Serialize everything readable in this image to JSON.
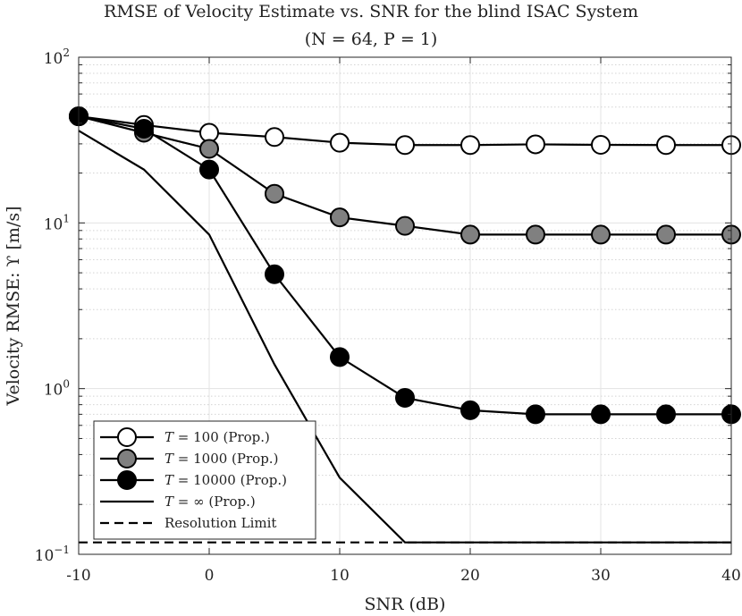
{
  "chart_data": {
    "type": "line",
    "title": "RMSE of Velocity Estimate vs. SNR for the blind ISAC System",
    "subtitle": "(N = 64, P = 1)",
    "xlabel": "SNR (dB)",
    "ylabel": "Velocity RMSE: ϒ [m/s]",
    "xlim": [
      -10,
      40
    ],
    "ylim": [
      0.1,
      100
    ],
    "yscale": "log",
    "grid": true,
    "legend_position": "bottom-left",
    "x_ticks": [
      "-10",
      "0",
      "10",
      "20",
      "30",
      "40"
    ],
    "y_ticks": [
      {
        "base": "10",
        "exp": "2",
        "value": 100
      },
      {
        "base": "10",
        "exp": "1",
        "value": 10
      },
      {
        "base": "10",
        "exp": "0",
        "value": 1
      },
      {
        "base": "10",
        "exp": "−1",
        "value": 0.1
      }
    ],
    "x": [
      -10,
      -5,
      0,
      5,
      10,
      15,
      20,
      25,
      30,
      35,
      40
    ],
    "series": [
      {
        "name": "T = 100 (Prop.)",
        "legend_var": "T",
        "legend_rest": " = 100 (Prop.)",
        "marker": "circle",
        "fill": "#ffffff",
        "dash": "solid",
        "values": [
          44,
          39,
          35,
          33,
          30.5,
          29.5,
          29.5,
          29.8,
          29.6,
          29.5,
          29.5
        ]
      },
      {
        "name": "T = 1000 (Prop.)",
        "legend_var": "T",
        "legend_rest": " = 1000 (Prop.)",
        "marker": "circle",
        "fill": "#808080",
        "dash": "solid",
        "values": [
          44,
          35,
          28,
          15,
          10.8,
          9.6,
          8.5,
          8.5,
          8.5,
          8.5,
          8.5
        ]
      },
      {
        "name": "T = 10000 (Prop.)",
        "legend_var": "T",
        "legend_rest": " = 10000 (Prop.)",
        "marker": "circle",
        "fill": "#000000",
        "dash": "solid",
        "values": [
          44,
          37,
          21,
          4.9,
          1.55,
          0.88,
          0.74,
          0.7,
          0.7,
          0.7,
          0.7
        ]
      },
      {
        "name": "T = ∞ (Prop.)",
        "legend_var": "T",
        "legend_rest": " = ∞ (Prop.)",
        "marker": "none",
        "fill": "none",
        "dash": "solid",
        "values": [
          36,
          21,
          8.5,
          1.4,
          0.29,
          0.118,
          0.118,
          0.118,
          0.118,
          0.118,
          0.118
        ]
      },
      {
        "name": "Resolution Limit",
        "legend_var": "",
        "legend_rest": "Resolution Limit",
        "marker": "none",
        "fill": "none",
        "dash": "dashed",
        "values": [
          0.118,
          0.118,
          0.118,
          0.118,
          0.118,
          0.118,
          0.118,
          0.118,
          0.118,
          0.118,
          0.118
        ]
      }
    ]
  }
}
